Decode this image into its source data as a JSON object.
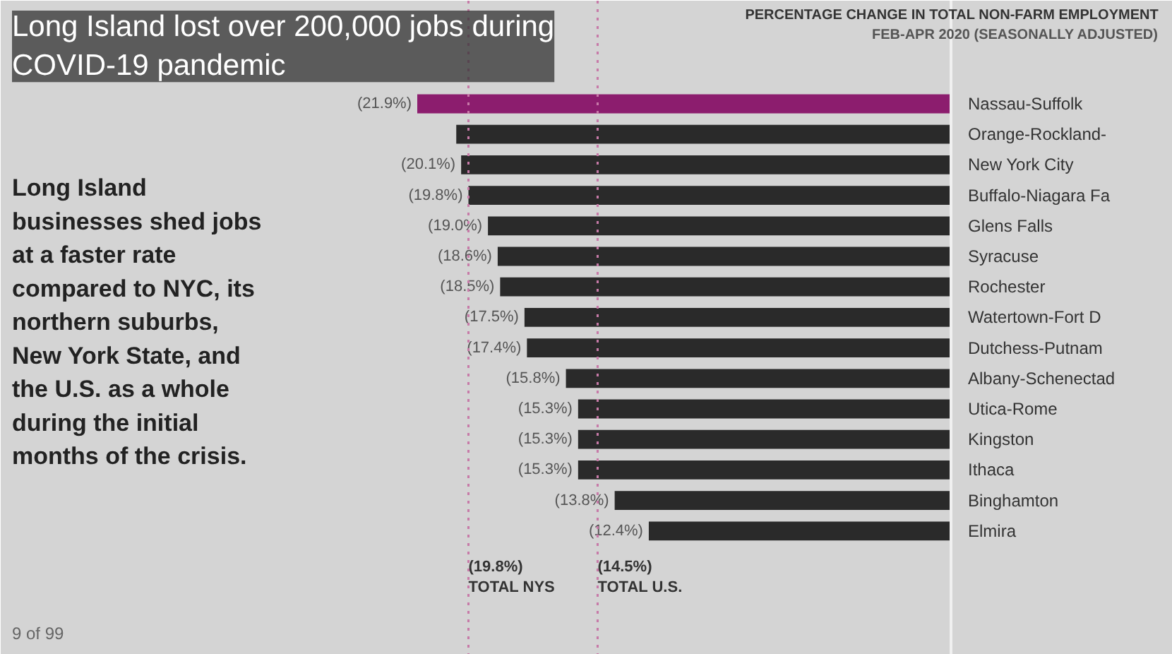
{
  "chart_data": {
    "type": "bar",
    "orientation": "horizontal",
    "title": "PERCENTAGE CHANGE IN TOTAL NON-FARM EMPLOYMENT",
    "subtitle": "FEB-APR 2020 (SEASONALLY ADJUSTED)",
    "categories": [
      "Nassau-Suffolk",
      "Orange-Rockland-",
      "New York City",
      "Buffalo-Niagara Fa",
      "Glens Falls",
      "Syracuse",
      "Rochester",
      "Watertown-Fort D",
      "Dutchess-Putnam",
      "Albany-Schenectad",
      "Utica-Rome",
      "Kingston",
      "Ithaca",
      "Binghamton",
      "Elmira"
    ],
    "values": [
      -21.9,
      -20.3,
      -20.1,
      -19.8,
      -19.0,
      -18.6,
      -18.5,
      -17.5,
      -17.4,
      -15.8,
      -15.3,
      -15.3,
      -15.3,
      -13.8,
      -12.4
    ],
    "colors": [
      "#8c1d6e",
      "#2a2a2a",
      "#2a2a2a",
      "#2a2a2a",
      "#2a2a2a",
      "#2a2a2a",
      "#2a2a2a",
      "#2a2a2a",
      "#2a2a2a",
      "#2a2a2a",
      "#2a2a2a",
      "#2a2a2a",
      "#2a2a2a",
      "#2a2a2a",
      "#2a2a2a"
    ],
    "value_labels": [
      "(21.9%)",
      null,
      "(20.1%)",
      "(19.8%)",
      "(19.0%)",
      "(18.6%)",
      "(18.5%)",
      "(17.5%)",
      "(17.4%)",
      "(15.8%)",
      "(15.3%)",
      "(15.3%)",
      "(15.3%)",
      "(13.8%)",
      "(12.4%)"
    ],
    "ref_lines": [
      {
        "axis": "x",
        "value": -19.8,
        "label": "(19.8%)\nTOTAL NYS",
        "color": "#c77aa8",
        "line_style": "dotted"
      },
      {
        "axis": "x",
        "value": -14.5,
        "label": "(14.5%)\nTOTAL U.S.",
        "color": "#c77aa8",
        "line_style": "dotted"
      }
    ],
    "annotations": [
      "Long Island lost over 200,000 jobs during\nCOVID-19 pandemic",
      "9 of 99",
      "Long Island\nbusinesses shed jobs\nat a faster rate\ncompared to NYC, its\nnorthern suburbs,\nNew York State, and\nthe U.S. as a whole\nduring the initial\nmonths of the crisis."
    ],
    "grid": false
  }
}
